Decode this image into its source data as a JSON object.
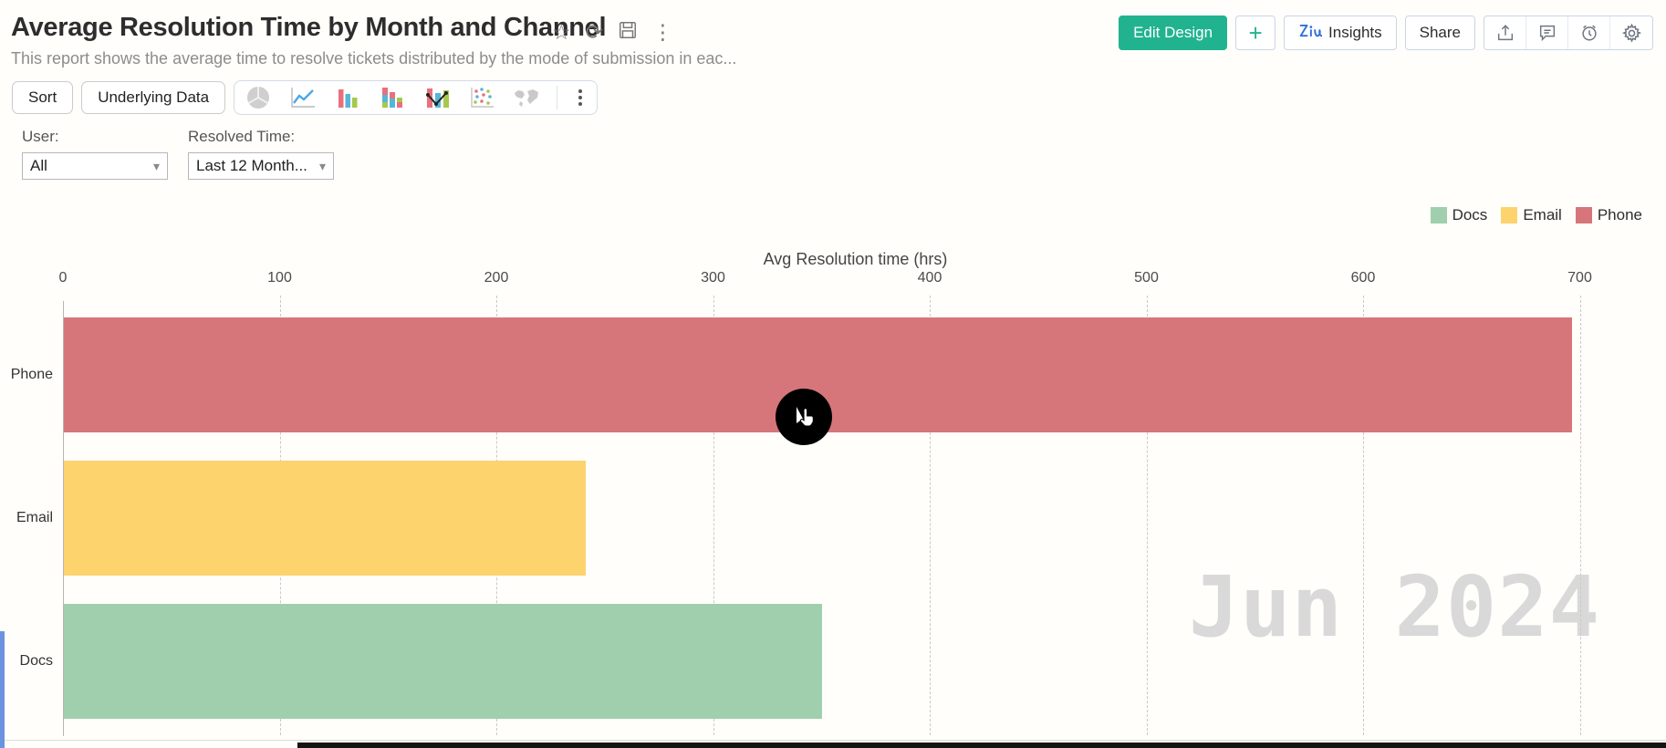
{
  "header": {
    "title": "Average Resolution Time by Month and Channel",
    "subtitle": "This report shows the average time to resolve tickets distributed by the mode of submission in eac...",
    "actions": {
      "edit_design": "Edit Design",
      "insights": "Insights",
      "share": "Share"
    }
  },
  "icons": {
    "star": "☆",
    "refresh": "⟳",
    "kebab": "⋮",
    "plus": "+",
    "caret": "▾"
  },
  "toolbar": {
    "sort": "Sort",
    "underlying_data": "Underlying Data"
  },
  "filters": {
    "user_label": "User:",
    "user_value": "All",
    "time_label": "Resolved Time:",
    "time_value": "Last 12 Month..."
  },
  "legend": [
    {
      "label": "Docs",
      "color": "#a0cfae"
    },
    {
      "label": "Email",
      "color": "#fcd36d"
    },
    {
      "label": "Phone",
      "color": "#d6767a"
    }
  ],
  "watermark": "Jun 2024",
  "chart_data": {
    "type": "bar",
    "orientation": "horizontal",
    "title": "Avg Resolution time (hrs)",
    "categories": [
      "Phone",
      "Email",
      "Docs"
    ],
    "values": [
      696,
      241,
      350
    ],
    "colors": [
      "#d6767a",
      "#fcd36d",
      "#a0cfae"
    ],
    "xlabel": "Avg Resolution time (hrs)",
    "ylabel": "",
    "xlim": [
      0,
      730
    ],
    "xticks": [
      0,
      100,
      200,
      300,
      400,
      500,
      600,
      700
    ],
    "grid": "dashed-vertical",
    "legend_position": "top-right"
  }
}
